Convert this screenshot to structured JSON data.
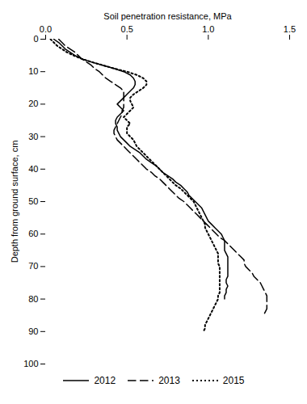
{
  "chart_data": {
    "type": "line",
    "xlabel": "Soil penetration resistance, MPa",
    "ylabel": "Depth from ground surface, cm",
    "xlim": [
      0.0,
      1.5
    ],
    "ylim": [
      100,
      0
    ],
    "xticks": [
      {
        "value": 0,
        "label": "0.0"
      },
      0.5,
      {
        "value": 1,
        "label": "1.0"
      },
      1.5
    ],
    "yticks": [
      0,
      10,
      20,
      30,
      40,
      50,
      60,
      70,
      80,
      90,
      100
    ],
    "legend": "bottom",
    "series": [
      {
        "name": "2012",
        "color": "#000000",
        "line_style": "solid",
        "x": [
          0.05,
          0.08,
          0.1,
          0.12,
          0.15,
          0.18,
          0.22,
          0.28,
          0.35,
          0.42,
          0.48,
          0.52,
          0.54,
          0.55,
          0.55,
          0.54,
          0.52,
          0.5,
          0.48,
          0.46,
          0.44,
          0.46,
          0.48,
          0.46,
          0.44,
          0.43,
          0.43,
          0.44,
          0.44,
          0.45,
          0.46,
          0.48,
          0.5,
          0.52,
          0.55,
          0.58,
          0.6,
          0.62,
          0.65,
          0.68,
          0.7,
          0.72,
          0.75,
          0.78,
          0.8,
          0.83,
          0.85,
          0.87,
          0.88,
          0.9,
          0.92,
          0.94,
          0.96,
          0.97,
          0.98,
          0.99,
          1.0,
          1.02,
          1.04,
          1.06,
          1.08,
          1.09,
          1.1,
          1.1,
          1.1,
          1.1,
          1.11,
          1.12,
          1.12,
          1.12,
          1.12,
          1.12,
          1.12,
          1.12,
          1.11,
          1.11,
          1.12,
          1.11,
          1.11,
          1.1,
          1.1
        ],
        "y": [
          0,
          1,
          2,
          3,
          4,
          5,
          6,
          7,
          8,
          9,
          10,
          11,
          12,
          13,
          14,
          15,
          16,
          17,
          18,
          19,
          20,
          21,
          22,
          23,
          24,
          25,
          26,
          27,
          28,
          29,
          30,
          31,
          32,
          33,
          34,
          35,
          36,
          37,
          38,
          39,
          40,
          41,
          42,
          43,
          44,
          45,
          46,
          47,
          48,
          49,
          50,
          51,
          52,
          53,
          54,
          55,
          56,
          57,
          58,
          59,
          60,
          61,
          62,
          63,
          64,
          65,
          66,
          67,
          68,
          69,
          70,
          71,
          72,
          73,
          74,
          75,
          76,
          77,
          78,
          79,
          80
        ]
      },
      {
        "name": "2013",
        "color": "#000000",
        "line_style": "dashed",
        "x": [
          0.08,
          0.1,
          0.12,
          0.15,
          0.18,
          0.2,
          0.22,
          0.25,
          0.28,
          0.3,
          0.33,
          0.35,
          0.37,
          0.4,
          0.43,
          0.46,
          0.48,
          0.48,
          0.48,
          0.48,
          0.48,
          0.48,
          0.47,
          0.47,
          0.46,
          0.45,
          0.44,
          0.43,
          0.42,
          0.42,
          0.43,
          0.44,
          0.46,
          0.48,
          0.5,
          0.52,
          0.54,
          0.56,
          0.58,
          0.6,
          0.62,
          0.65,
          0.67,
          0.7,
          0.72,
          0.74,
          0.76,
          0.78,
          0.8,
          0.82,
          0.85,
          0.87,
          0.89,
          0.91,
          0.93,
          0.95,
          0.97,
          0.99,
          1.01,
          1.03,
          1.05,
          1.07,
          1.1,
          1.12,
          1.14,
          1.16,
          1.18,
          1.2,
          1.22,
          1.22,
          1.23,
          1.25,
          1.27,
          1.28,
          1.3,
          1.32,
          1.33,
          1.34,
          1.35,
          1.36,
          1.36,
          1.36,
          1.36,
          1.36,
          1.35,
          1.34
        ],
        "y": [
          0,
          1,
          2,
          3,
          4,
          5,
          6,
          7,
          8,
          9,
          10,
          11,
          12,
          13,
          14,
          15,
          16,
          17,
          18,
          19,
          20,
          21,
          22,
          23,
          24,
          25,
          26,
          27,
          28,
          29,
          30,
          31,
          32,
          33,
          34,
          35,
          36,
          37,
          38,
          39,
          40,
          41,
          42,
          43,
          44,
          45,
          46,
          47,
          48,
          49,
          50,
          51,
          52,
          53,
          54,
          55,
          56,
          57,
          58,
          59,
          60,
          61,
          62,
          63,
          64,
          65,
          66,
          67,
          68,
          69,
          70,
          71,
          72,
          73,
          74,
          75,
          76,
          77,
          78,
          79,
          80,
          81,
          82,
          83,
          84,
          85
        ]
      },
      {
        "name": "2015",
        "color": "#000000",
        "line_style": "dotted",
        "x": [
          0.03,
          0.05,
          0.07,
          0.1,
          0.13,
          0.17,
          0.22,
          0.28,
          0.35,
          0.42,
          0.5,
          0.56,
          0.6,
          0.62,
          0.62,
          0.6,
          0.57,
          0.54,
          0.52,
          0.52,
          0.53,
          0.54,
          0.52,
          0.5,
          0.48,
          0.5,
          0.52,
          0.5,
          0.5,
          0.5,
          0.52,
          0.54,
          0.55,
          0.56,
          0.58,
          0.6,
          0.62,
          0.64,
          0.66,
          0.68,
          0.7,
          0.72,
          0.74,
          0.76,
          0.78,
          0.8,
          0.83,
          0.85,
          0.87,
          0.89,
          0.91,
          0.92,
          0.93,
          0.94,
          0.95,
          0.96,
          0.97,
          0.98,
          0.98,
          0.99,
          1.0,
          1.01,
          1.02,
          1.03,
          1.04,
          1.05,
          1.06,
          1.06,
          1.06,
          1.06,
          1.07,
          1.07,
          1.07,
          1.07,
          1.07,
          1.07,
          1.07,
          1.07,
          1.07,
          1.06,
          1.06,
          1.05,
          1.04,
          1.03,
          1.02,
          1.01,
          1.0,
          0.99,
          0.98,
          0.98,
          0.97
        ],
        "y": [
          0,
          1,
          2,
          3,
          4,
          5,
          6,
          7,
          8,
          9,
          10,
          11,
          12,
          13,
          14,
          15,
          16,
          17,
          18,
          19,
          20,
          21,
          22,
          23,
          24,
          25,
          26,
          27,
          28,
          29,
          30,
          31,
          32,
          33,
          34,
          35,
          36,
          37,
          38,
          39,
          40,
          41,
          42,
          43,
          44,
          45,
          46,
          47,
          48,
          49,
          50,
          51,
          52,
          53,
          54,
          55,
          56,
          57,
          58,
          59,
          60,
          61,
          62,
          63,
          64,
          65,
          66,
          67,
          68,
          69,
          70,
          71,
          72,
          73,
          74,
          75,
          76,
          77,
          78,
          79,
          80,
          81,
          82,
          83,
          84,
          85,
          86,
          87,
          88,
          89,
          90
        ]
      }
    ]
  }
}
